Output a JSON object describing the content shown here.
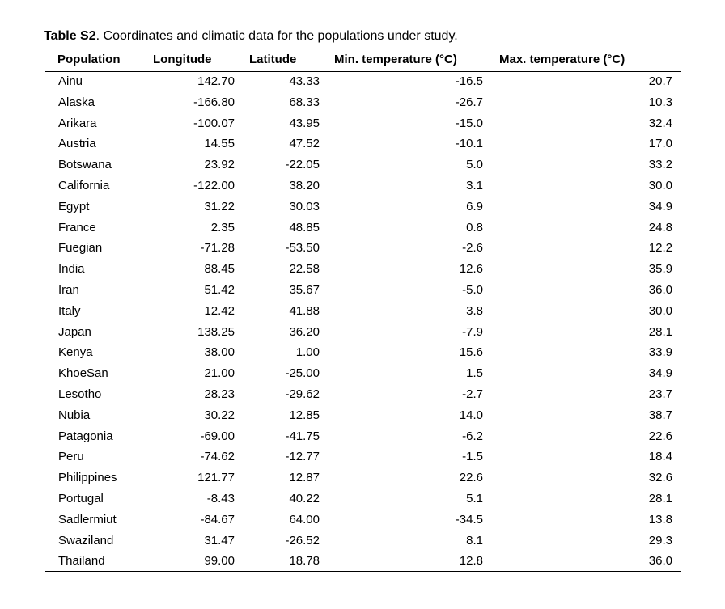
{
  "caption": {
    "label": "Table S2",
    "text": ". Coordinates and climatic data for the populations under study."
  },
  "headers": [
    "Population",
    "Longitude",
    "Latitude",
    "Min. temperature (°C)",
    "Max. temperature (°C)"
  ],
  "rows": [
    [
      "Ainu",
      "142.70",
      "43.33",
      "-16.5",
      "20.7"
    ],
    [
      "Alaska",
      "-166.80",
      "68.33",
      "-26.7",
      "10.3"
    ],
    [
      "Arikara",
      "-100.07",
      "43.95",
      "-15.0",
      "32.4"
    ],
    [
      "Austria",
      "14.55",
      "47.52",
      "-10.1",
      "17.0"
    ],
    [
      "Botswana",
      "23.92",
      "-22.05",
      "5.0",
      "33.2"
    ],
    [
      "California",
      "-122.00",
      "38.20",
      "3.1",
      "30.0"
    ],
    [
      "Egypt",
      "31.22",
      "30.03",
      "6.9",
      "34.9"
    ],
    [
      "France",
      "2.35",
      "48.85",
      "0.8",
      "24.8"
    ],
    [
      "Fuegian",
      "-71.28",
      "-53.50",
      "-2.6",
      "12.2"
    ],
    [
      "India",
      "88.45",
      "22.58",
      "12.6",
      "35.9"
    ],
    [
      "Iran",
      "51.42",
      "35.67",
      "-5.0",
      "36.0"
    ],
    [
      "Italy",
      "12.42",
      "41.88",
      "3.8",
      "30.0"
    ],
    [
      "Japan",
      "138.25",
      "36.20",
      "-7.9",
      "28.1"
    ],
    [
      "Kenya",
      "38.00",
      "1.00",
      "15.6",
      "33.9"
    ],
    [
      "KhoeSan",
      "21.00",
      "-25.00",
      "1.5",
      "34.9"
    ],
    [
      "Lesotho",
      "28.23",
      "-29.62",
      "-2.7",
      "23.7"
    ],
    [
      "Nubia",
      "30.22",
      "12.85",
      "14.0",
      "38.7"
    ],
    [
      "Patagonia",
      "-69.00",
      "-41.75",
      "-6.2",
      "22.6"
    ],
    [
      "Peru",
      "-74.62",
      "-12.77",
      "-1.5",
      "18.4"
    ],
    [
      "Philippines",
      "121.77",
      "12.87",
      "22.6",
      "32.6"
    ],
    [
      "Portugal",
      "-8.43",
      "40.22",
      "5.1",
      "28.1"
    ],
    [
      "Sadlermiut",
      "-84.67",
      "64.00",
      "-34.5",
      "13.8"
    ],
    [
      "Swaziland",
      "31.47",
      "-26.52",
      "8.1",
      "29.3"
    ],
    [
      "Thailand",
      "99.00",
      "18.78",
      "12.8",
      "36.0"
    ]
  ]
}
